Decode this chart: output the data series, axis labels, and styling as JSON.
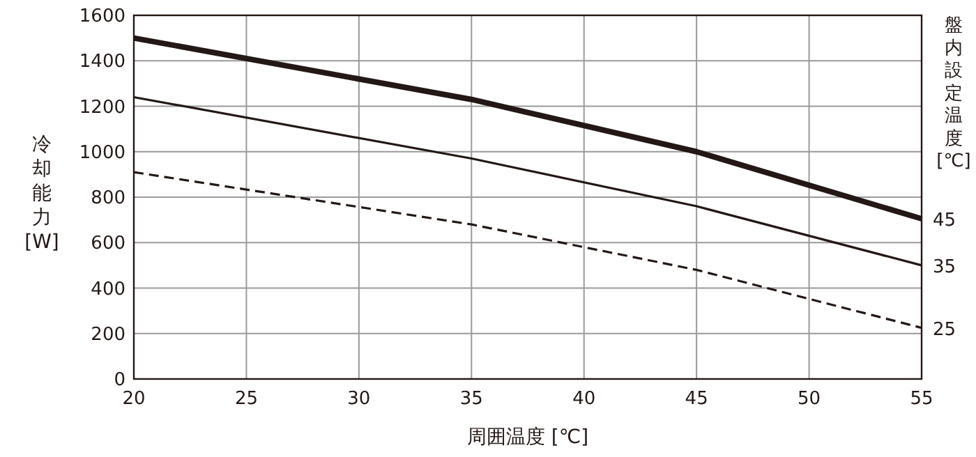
{
  "chart_data": {
    "type": "line",
    "xlabel": "周囲温度 [℃]",
    "ylabel": "冷却能力[W]",
    "y2label": "盤内設定温度[℃]",
    "xlim": [
      20,
      55
    ],
    "xticks": [
      20,
      25,
      30,
      35,
      40,
      45,
      50,
      55
    ],
    "ylim": [
      0,
      1600
    ],
    "yticks": [
      0,
      200,
      400,
      600,
      800,
      1000,
      1200,
      1400,
      1600
    ],
    "grid": true,
    "series": [
      {
        "name": "45",
        "color": "#231815",
        "x": [
          20,
          35,
          45,
          55
        ],
        "values": [
          1500,
          1230,
          1000,
          705
        ],
        "line_style": "solid"
      },
      {
        "name": "35",
        "color": "#231815",
        "x": [
          20,
          35,
          45,
          55
        ],
        "values": [
          1240,
          970,
          760,
          500
        ],
        "line_style": "solid"
      },
      {
        "name": "25",
        "color": "#231815",
        "x": [
          20,
          35,
          45,
          55
        ],
        "values": [
          910,
          680,
          480,
          225
        ],
        "line_style": "dashed"
      }
    ]
  }
}
